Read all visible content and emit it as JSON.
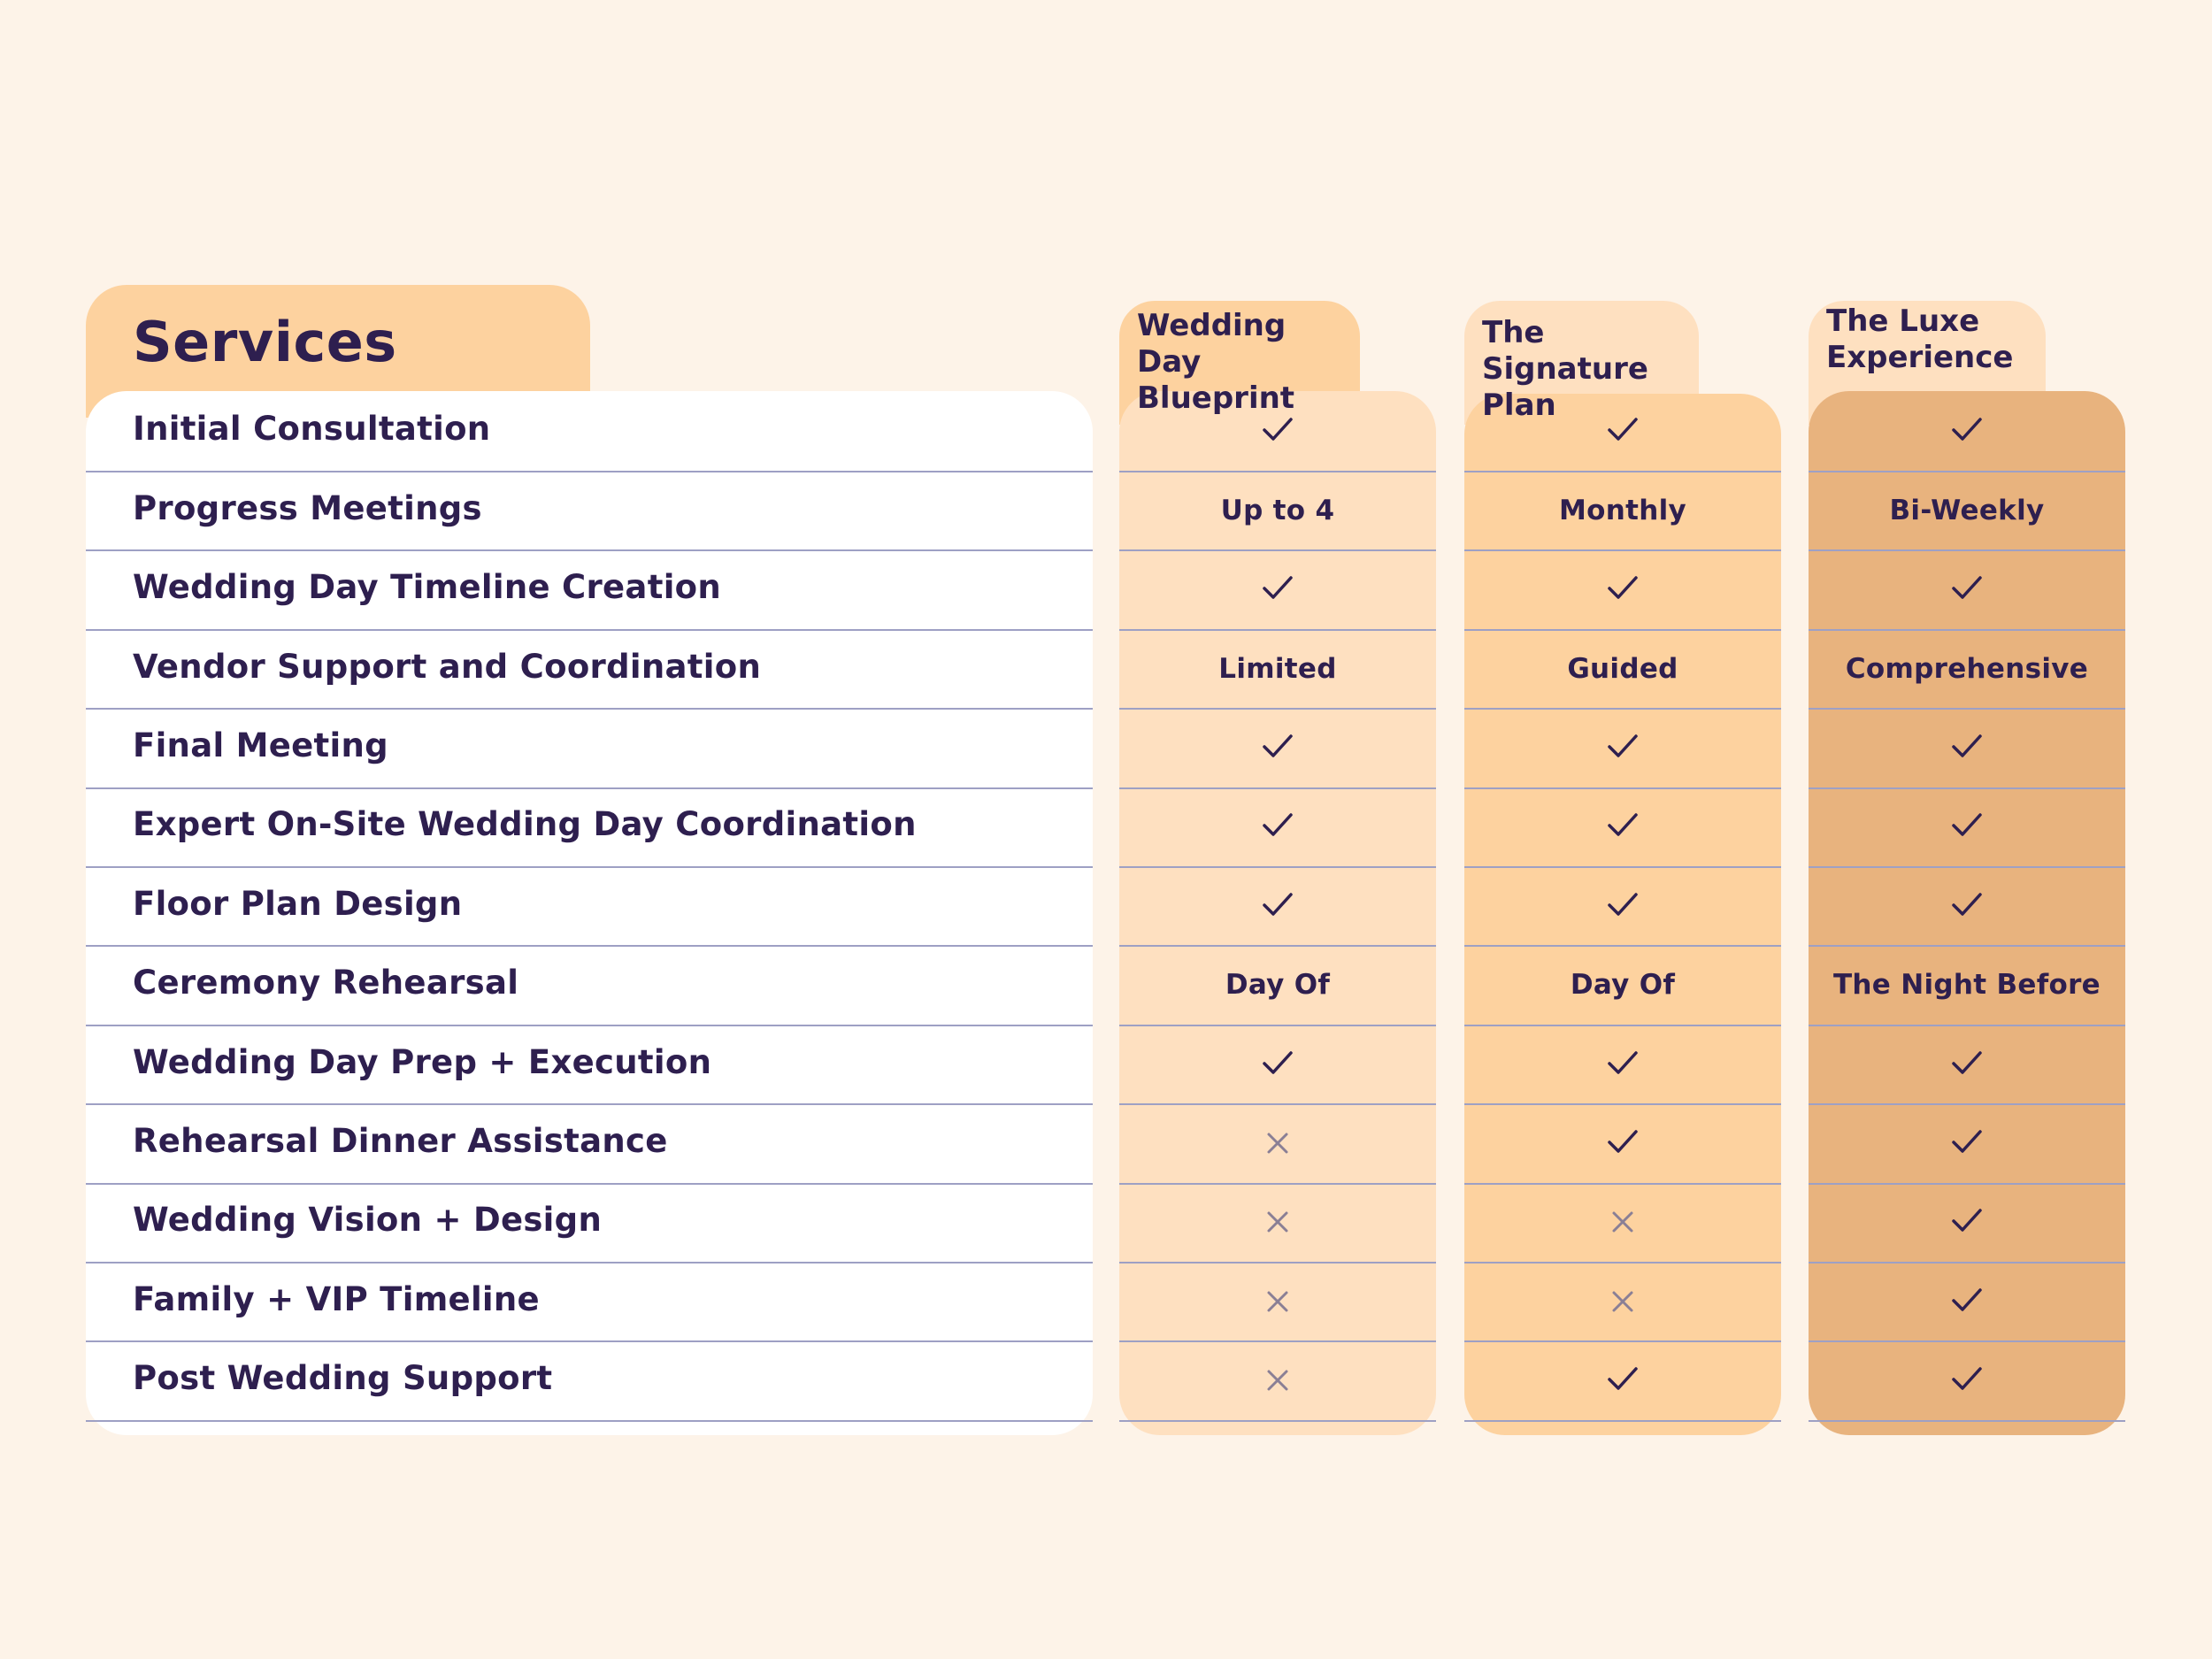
{
  "services_title": "Services",
  "plans": [
    {
      "name": "Wedding Day\nBlueprint"
    },
    {
      "name": "The Signature\nPlan"
    },
    {
      "name": "The Luxe\nExperience"
    }
  ],
  "rows": [
    {
      "label": "Initial Consultation",
      "values": [
        "check",
        "check",
        "check"
      ]
    },
    {
      "label": "Progress Meetings",
      "values": [
        "Up to 4",
        "Monthly",
        "Bi-Weekly"
      ]
    },
    {
      "label": "Wedding Day Timeline Creation",
      "values": [
        "check",
        "check",
        "check"
      ]
    },
    {
      "label": "Vendor Support and Coordination",
      "values": [
        "Limited",
        "Guided",
        "Comprehensive"
      ]
    },
    {
      "label": "Final Meeting",
      "values": [
        "check",
        "check",
        "check"
      ]
    },
    {
      "label": "Expert On-Site Wedding Day Coordination",
      "values": [
        "check",
        "check",
        "check"
      ]
    },
    {
      "label": "Floor Plan Design",
      "values": [
        "check",
        "check",
        "check"
      ]
    },
    {
      "label": "Ceremony Rehearsal",
      "values": [
        "Day Of",
        "Day Of",
        "The Night Before"
      ]
    },
    {
      "label": "Wedding Day Prep + Execution",
      "values": [
        "check",
        "check",
        "check"
      ]
    },
    {
      "label": "Rehearsal Dinner Assistance",
      "values": [
        "cross",
        "check",
        "check"
      ]
    },
    {
      "label": "Wedding Vision + Design",
      "values": [
        "cross",
        "cross",
        "check"
      ]
    },
    {
      "label": "Family + VIP Timeline",
      "values": [
        "cross",
        "cross",
        "check"
      ]
    },
    {
      "label": "Post Wedding Support",
      "values": [
        "cross",
        "check",
        "check"
      ]
    }
  ],
  "icons": {
    "check": "check-icon",
    "cross": "cross-icon"
  },
  "colors": {
    "background": "#fdf3e8",
    "text": "#2e1f4f",
    "plan_1_column": "#fee0c0",
    "plan_2_column": "#fdd29f",
    "plan_3_column": "#e8b37e",
    "divider": "#9ea0c4",
    "cross": "#8a7f95"
  }
}
